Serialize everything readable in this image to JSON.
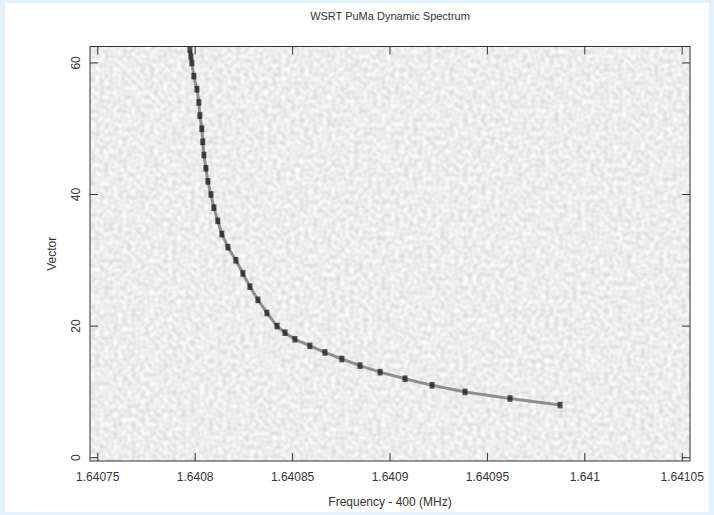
{
  "chart_data": {
    "type": "scatter",
    "title": "WSRT PuMa Dynamic Spectrum",
    "x_label": "Frequency - 400 (MHz)",
    "y_label": "Vector",
    "x": [
      1.6407973,
      1.6407978,
      1.6407983,
      1.6407993,
      1.6408009,
      1.6408019,
      1.6408024,
      1.6408034,
      1.6408039,
      1.6408045,
      1.6408055,
      1.6408065,
      1.6408081,
      1.6408096,
      1.6408116,
      1.6408137,
      1.6408168,
      1.6408209,
      1.6408245,
      1.6408281,
      1.6408322,
      1.6408368,
      1.640842,
      1.6408461,
      1.6408512,
      1.6408589,
      1.6408666,
      1.6408753,
      1.6408846,
      1.6408949,
      1.6409077,
      1.6409216,
      1.6409385,
      1.6409616,
      1.6409873
    ],
    "values": [
      62,
      61,
      60,
      58,
      56,
      54,
      52,
      50,
      48,
      46,
      44,
      42,
      40,
      38,
      36,
      34,
      32,
      30,
      28,
      26,
      24,
      22,
      20,
      19,
      18,
      17,
      16,
      15,
      14,
      13,
      12,
      11,
      10,
      9,
      8
    ],
    "color": "#1a1a1a",
    "marker": "square",
    "line_style": "solid",
    "xlim": [
      1.640746,
      1.641054
    ],
    "xticks": [
      1.64075,
      1.6408,
      1.64085,
      1.6409,
      1.64095,
      1.641,
      1.64105
    ],
    "ylim": [
      -0.5,
      62.5
    ],
    "yticks": [
      0,
      20,
      40,
      60
    ],
    "grid": false
  }
}
